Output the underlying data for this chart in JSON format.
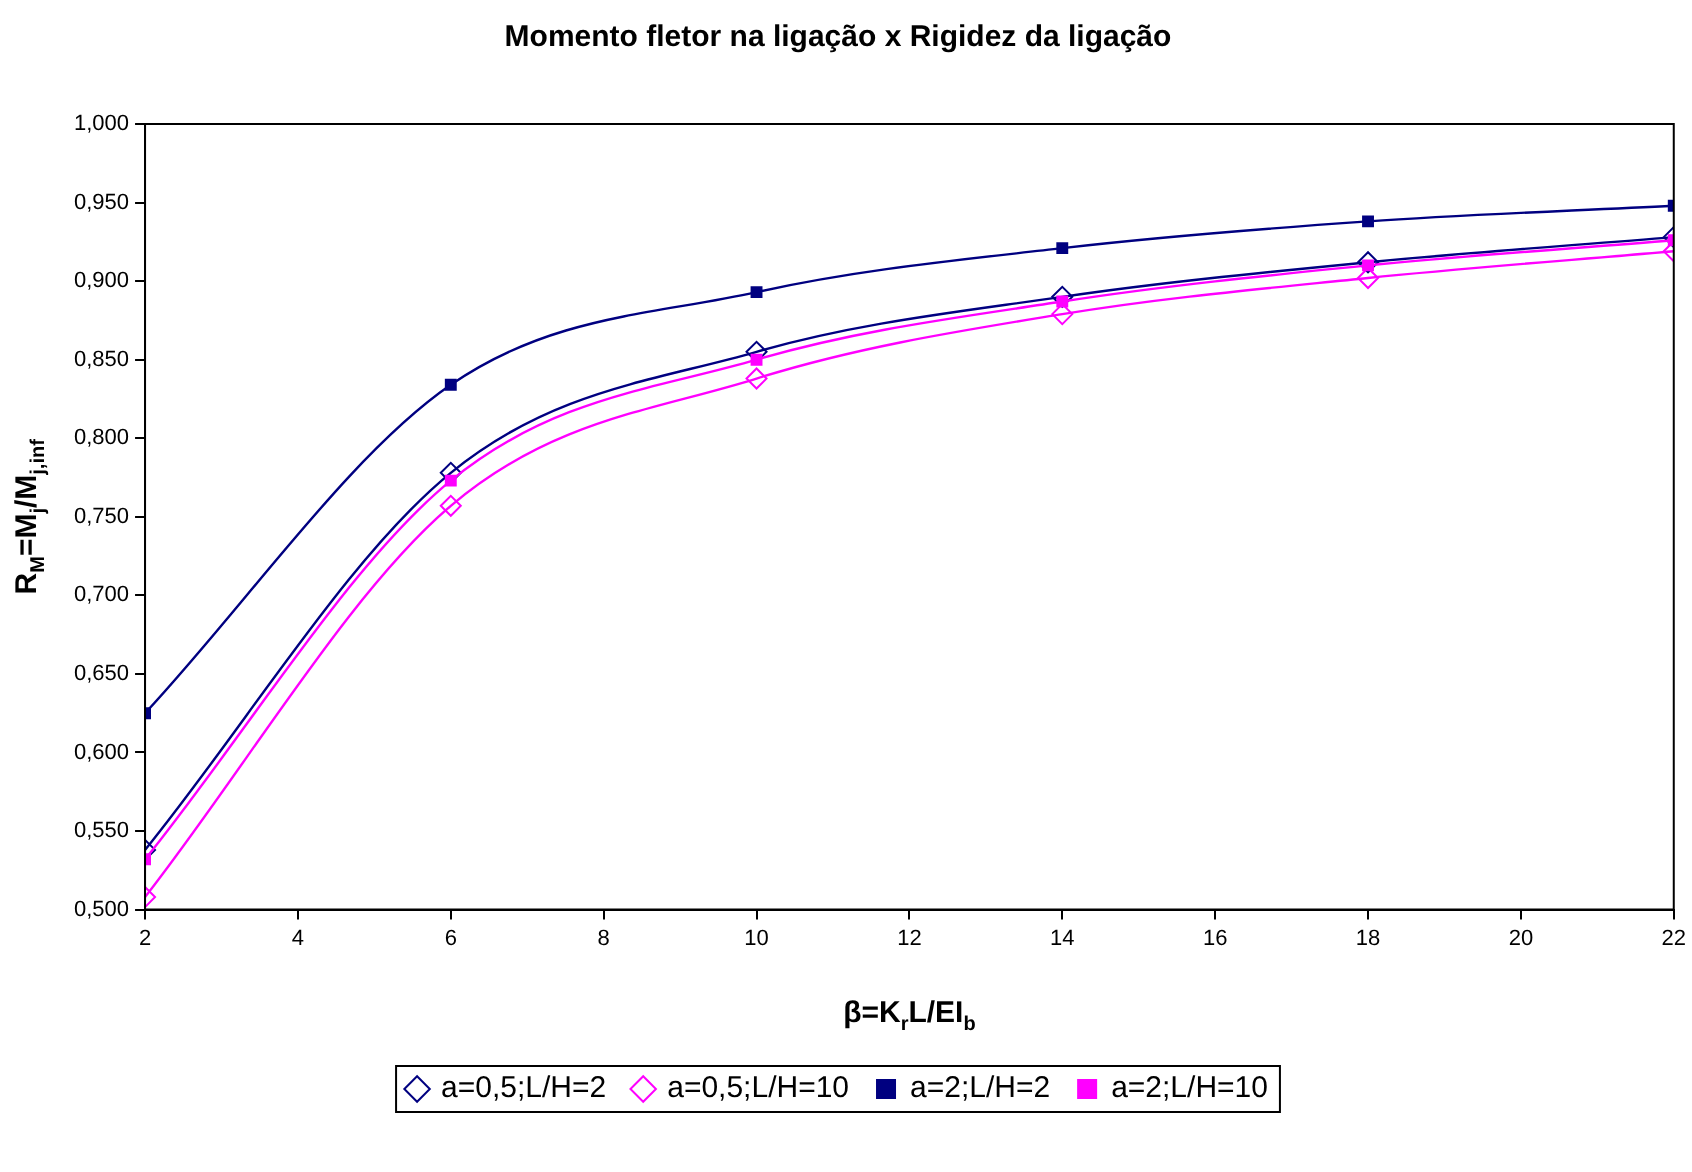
{
  "chart_data": {
    "type": "line",
    "title": "Momento fletor na ligação x Rigidez da ligação",
    "xlabel": "β=K$_{r}$L/EI$_{b}$",
    "ylabel": "R$_{M}$=M$_{j}$/M$_{j,inf}$",
    "x": [
      2,
      6,
      10,
      14,
      18,
      22
    ],
    "series": [
      {
        "name": "a=0,5;L/H=2",
        "color": "#000080",
        "marker": "diamond",
        "values": [
          0.538,
          0.778,
          0.855,
          0.89,
          0.912,
          0.928
        ]
      },
      {
        "name": "a=0,5;L/H=10",
        "color": "#ff00ff",
        "marker": "diamond",
        "values": [
          0.508,
          0.757,
          0.838,
          0.879,
          0.902,
          0.919
        ]
      },
      {
        "name": "a=2;L/H=2",
        "color": "#000080",
        "marker": "square",
        "values": [
          0.625,
          0.834,
          0.893,
          0.921,
          0.938,
          0.948
        ]
      },
      {
        "name": "a=2;L/H=10",
        "color": "#ff00ff",
        "marker": "square",
        "values": [
          0.532,
          0.773,
          0.85,
          0.887,
          0.91,
          0.926
        ]
      }
    ],
    "xlim": [
      2,
      22
    ],
    "xticks": [
      2,
      4,
      6,
      8,
      10,
      12,
      14,
      16,
      18,
      20,
      22
    ],
    "ylim": [
      0.5,
      1.0
    ],
    "yticks": [
      {
        "value": 0.5,
        "label": "0,500"
      },
      {
        "value": 0.55,
        "label": "0,550"
      },
      {
        "value": 0.6,
        "label": "0,600"
      },
      {
        "value": 0.65,
        "label": "0,650"
      },
      {
        "value": 0.7,
        "label": "0,700"
      },
      {
        "value": 0.75,
        "label": "0,750"
      },
      {
        "value": 0.8,
        "label": "0,800"
      },
      {
        "value": 0.85,
        "label": "0,850"
      },
      {
        "value": 0.9,
        "label": "0,900"
      },
      {
        "value": 0.95,
        "label": "0,950"
      },
      {
        "value": 1.0,
        "label": "1,000"
      }
    ],
    "grid": false,
    "legend": "bottom",
    "line_style": "solid"
  }
}
